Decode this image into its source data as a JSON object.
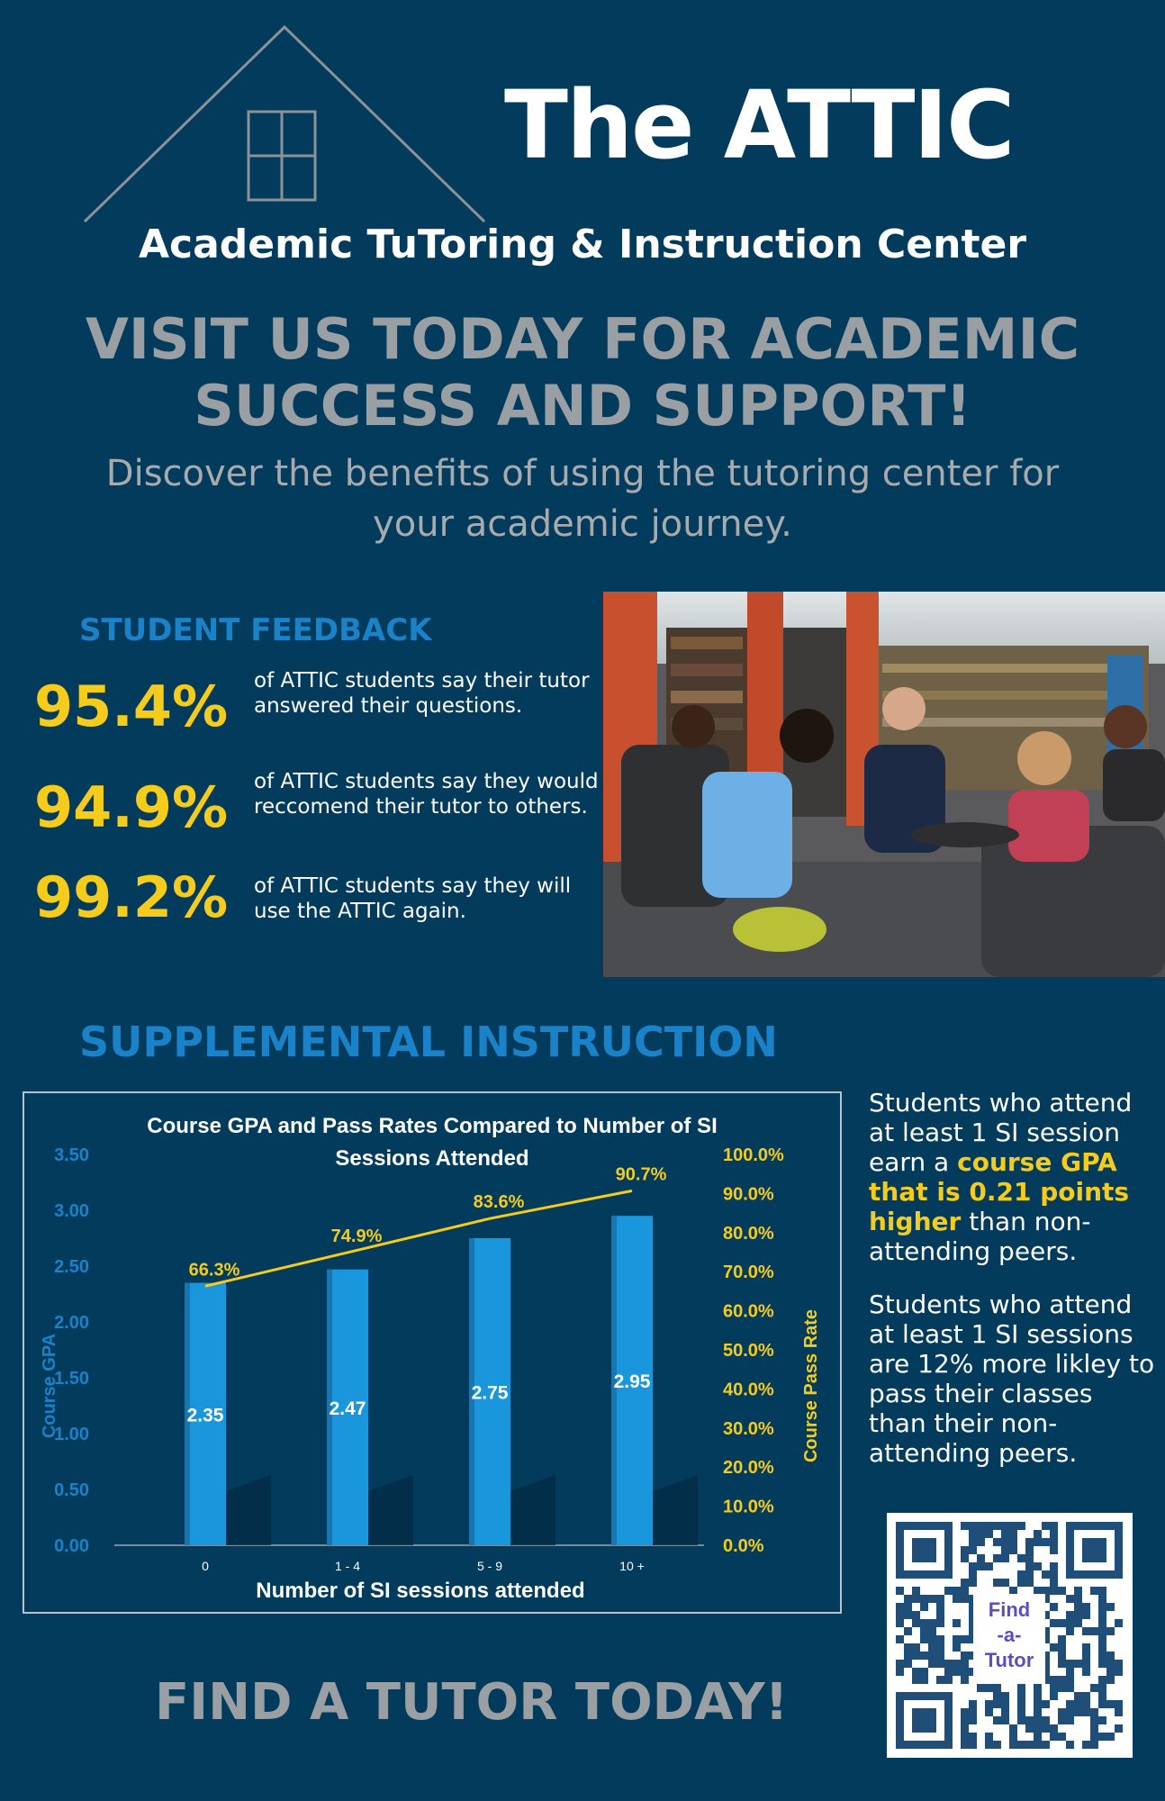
{
  "header": {
    "title": "The ATTIC",
    "subtitle": "Academic TuToring & Instruction Center",
    "headline": "VISIT US TODAY FOR ACADEMIC SUCCESS AND SUPPORT!",
    "intro": "Discover the benefits of using the tutoring center for your academic journey."
  },
  "feedback": {
    "title": "STUDENT FEEDBACK",
    "stats": [
      {
        "percent": "95.4%",
        "text": "of ATTIC students say their tutor answered their questions."
      },
      {
        "percent": "94.9%",
        "text": "of ATTIC students say they would reccomend their tutor to others."
      },
      {
        "percent": "99.2%",
        "text": "of ATTIC students say they will use the ATTIC again."
      }
    ]
  },
  "si": {
    "title": "SUPPLEMENTAL INSTRUCTION",
    "text1_a": "Students who attend at least 1 SI session earn a ",
    "text1_b": "course GPA that is 0.21 points higher",
    "text1_c": " than non-attending peers.",
    "text2": "Students who attend at least 1 SI sessions are 12% more likley to pass their classes than their non-attending peers."
  },
  "footer": {
    "cta": "FIND A TUTOR TODAY!",
    "qr_label_1": "Find",
    "qr_label_2": "-a-",
    "qr_label_3": "Tutor"
  },
  "colors": {
    "background": "#033b5c",
    "accent_yellow": "#f5cc1b",
    "accent_blue": "#1a82c8",
    "bar": "#1a96dc"
  },
  "chart_data": {
    "type": "bar",
    "title": "Course GPA and Pass Rates Compared to Number of SI Sessions Attended",
    "title_line1": "Course GPA and Pass Rates Compared to Number of SI",
    "title_line2": "Sessions Attended",
    "xlabel": "Number of SI sessions attended",
    "ylabel": "Course GPA",
    "y2label": "Course Pass Rate",
    "categories": [
      "0",
      "1 - 4",
      "5 - 9",
      "10 +"
    ],
    "series": [
      {
        "axis": "left",
        "kind": "bar",
        "values": [
          2.35,
          2.47,
          2.75,
          2.95
        ],
        "labels": [
          "2.35",
          "2.47",
          "2.75",
          "2.95"
        ]
      },
      {
        "axis": "right",
        "kind": "line",
        "values": [
          66.3,
          74.9,
          83.6,
          90.7
        ],
        "labels": [
          "66.3%",
          "74.9%",
          "83.6%",
          "90.7%"
        ]
      }
    ],
    "ylim": [
      0,
      3.5
    ],
    "y2lim": [
      0,
      100
    ],
    "yticks": [
      "0.00",
      "0.50",
      "1.00",
      "1.50",
      "2.00",
      "2.50",
      "3.00",
      "3.50"
    ],
    "y2ticks": [
      "0.0%",
      "10.0%",
      "20.0%",
      "30.0%",
      "40.0%",
      "50.0%",
      "60.0%",
      "70.0%",
      "80.0%",
      "90.0%",
      "100.0%"
    ],
    "grid": false
  }
}
